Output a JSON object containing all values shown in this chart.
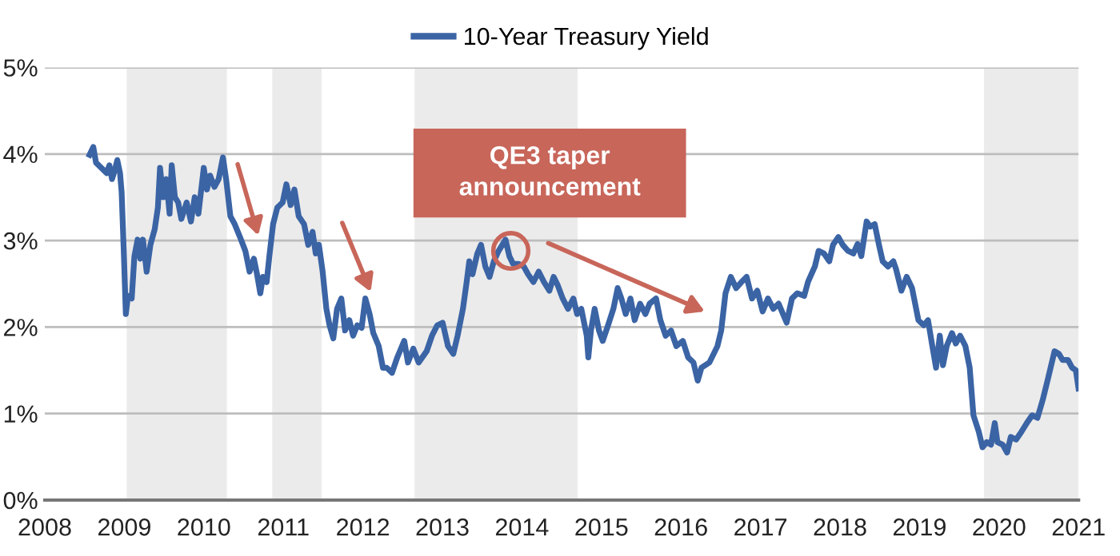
{
  "chart_data": {
    "type": "line",
    "legend": "top",
    "grid": "y",
    "line_style": "solid",
    "xlim": [
      2008,
      2021
    ],
    "xticks": [
      2008,
      2009,
      2010,
      2011,
      2012,
      2013,
      2014,
      2015,
      2016,
      2017,
      2018,
      2019,
      2020,
      2021
    ],
    "ylim": [
      0,
      5
    ],
    "yticks": [
      {
        "value": 0,
        "label": "0%"
      },
      {
        "value": 1,
        "label": "1%"
      },
      {
        "value": 2,
        "label": "2%"
      },
      {
        "value": 3,
        "label": "3%"
      },
      {
        "value": 4,
        "label": "4%"
      },
      {
        "value": 5,
        "label": "5%"
      }
    ],
    "bands": [
      {
        "axis": "x",
        "from": 2009.03,
        "to": 2010.29,
        "color": "#ebebeb"
      },
      {
        "axis": "x",
        "from": 2010.86,
        "to": 2011.48,
        "color": "#ebebeb"
      },
      {
        "axis": "x",
        "from": 2012.65,
        "to": 2014.7,
        "color": "#ebebeb"
      },
      {
        "axis": "x",
        "from": 2019.81,
        "to": 2021.0,
        "color": "#ebebeb"
      }
    ],
    "annotations": [
      {
        "text": "QE3 taper announcement",
        "x": 2013.86,
        "y": 2.88
      }
    ],
    "series": [
      {
        "name": "10-Year Treasury Yield",
        "color": "#3b64a5",
        "x": [
          2008.563,
          2008.61,
          2008.644,
          2008.711,
          2008.778,
          2008.812,
          2008.845,
          2008.879,
          2008.912,
          2008.946,
          2008.966,
          2008.993,
          2009.019,
          2009.046,
          2009.093,
          2009.127,
          2009.167,
          2009.201,
          2009.234,
          2009.281,
          2009.328,
          2009.382,
          2009.422,
          2009.449,
          2009.489,
          2009.529,
          2009.569,
          2009.596,
          2009.636,
          2009.677,
          2009.717,
          2009.784,
          2009.838,
          2009.885,
          2009.932,
          2009.999,
          2010.039,
          2010.079,
          2010.133,
          2010.186,
          2010.24,
          2010.28,
          2010.334,
          2010.388,
          2010.455,
          2010.522,
          2010.575,
          2010.629,
          2010.669,
          2010.71,
          2010.743,
          2010.79,
          2010.824,
          2010.871,
          2010.924,
          2010.991,
          2011.038,
          2011.092,
          2011.139,
          2011.193,
          2011.26,
          2011.313,
          2011.367,
          2011.407,
          2011.447,
          2011.494,
          2011.541,
          2011.581,
          2011.628,
          2011.675,
          2011.729,
          2011.776,
          2011.83,
          2011.877,
          2011.93,
          2011.984,
          2012.031,
          2012.085,
          2012.131,
          2012.199,
          2012.252,
          2012.299,
          2012.366,
          2012.433,
          2012.52,
          2012.567,
          2012.634,
          2012.701,
          2012.802,
          2012.869,
          2012.936,
          2013.003,
          2013.07,
          2013.137,
          2013.191,
          2013.258,
          2013.305,
          2013.338,
          2013.378,
          2013.439,
          2013.486,
          2013.54,
          2013.593,
          2013.647,
          2013.707,
          2013.794,
          2013.842,
          2013.889,
          2013.956,
          2014.023,
          2014.077,
          2014.144,
          2014.211,
          2014.278,
          2014.345,
          2014.399,
          2014.452,
          2014.513,
          2014.58,
          2014.647,
          2014.694,
          2014.747,
          2014.815,
          2014.835,
          2014.868,
          2014.915,
          2014.969,
          2015.016,
          2015.083,
          2015.15,
          2015.204,
          2015.251,
          2015.305,
          2015.365,
          2015.418,
          2015.486,
          2015.553,
          2015.606,
          2015.687,
          2015.741,
          2015.808,
          2015.875,
          2015.942,
          2016.023,
          2016.09,
          2016.157,
          2016.211,
          2016.258,
          2016.358,
          2016.459,
          2016.506,
          2016.56,
          2016.627,
          2016.694,
          2016.761,
          2016.826,
          2016.893,
          2016.96,
          2017.027,
          2017.094,
          2017.161,
          2017.228,
          2017.329,
          2017.396,
          2017.463,
          2017.55,
          2017.597,
          2017.684,
          2017.731,
          2017.798,
          2017.865,
          2017.912,
          2017.979,
          2018.034,
          2018.101,
          2018.168,
          2018.221,
          2018.268,
          2018.335,
          2018.382,
          2018.436,
          2018.49,
          2018.537,
          2018.604,
          2018.671,
          2018.705,
          2018.772,
          2018.839,
          2018.906,
          2018.986,
          2019.053,
          2019.107,
          2019.161,
          2019.208,
          2019.255,
          2019.295,
          2019.342,
          2019.409,
          2019.456,
          2019.51,
          2019.577,
          2019.631,
          2019.678,
          2019.745,
          2019.792,
          2019.845,
          2019.899,
          2019.946,
          2019.98,
          2020.047,
          2020.101,
          2020.148,
          2020.215,
          2020.282,
          2020.349,
          2020.416,
          2020.483,
          2020.55,
          2020.617,
          2020.698,
          2020.752,
          2020.799,
          2020.866,
          2020.919,
          2020.966,
          2021.0
        ],
        "values": [
          3.99,
          4.08,
          3.9,
          3.84,
          3.78,
          3.87,
          3.71,
          3.81,
          3.93,
          3.78,
          3.56,
          2.88,
          2.15,
          2.36,
          2.33,
          2.82,
          3.01,
          2.79,
          3.01,
          2.64,
          2.95,
          3.13,
          3.38,
          3.84,
          3.5,
          3.71,
          3.31,
          3.87,
          3.5,
          3.44,
          3.25,
          3.44,
          3.22,
          3.5,
          3.31,
          3.84,
          3.59,
          3.75,
          3.62,
          3.71,
          3.96,
          3.71,
          3.28,
          3.19,
          3.04,
          2.88,
          2.64,
          2.79,
          2.61,
          2.39,
          2.58,
          2.52,
          2.82,
          3.19,
          3.38,
          3.44,
          3.65,
          3.41,
          3.59,
          3.28,
          3.19,
          2.95,
          3.1,
          2.85,
          2.95,
          2.64,
          2.21,
          2.02,
          1.87,
          2.21,
          2.33,
          1.96,
          2.08,
          1.9,
          2.02,
          1.99,
          2.33,
          2.15,
          1.93,
          1.78,
          1.53,
          1.53,
          1.47,
          1.65,
          1.84,
          1.59,
          1.75,
          1.59,
          1.72,
          1.9,
          2.02,
          2.05,
          1.78,
          1.69,
          1.9,
          2.21,
          2.52,
          2.76,
          2.61,
          2.85,
          2.95,
          2.7,
          2.58,
          2.76,
          2.88,
          3.01,
          2.82,
          2.73,
          2.73,
          2.7,
          2.61,
          2.52,
          2.64,
          2.52,
          2.42,
          2.58,
          2.48,
          2.33,
          2.21,
          2.33,
          2.15,
          2.21,
          1.9,
          1.65,
          1.96,
          2.21,
          1.96,
          1.84,
          2.02,
          2.21,
          2.45,
          2.33,
          2.15,
          2.33,
          2.08,
          2.27,
          2.15,
          2.27,
          2.33,
          2.08,
          1.9,
          1.96,
          1.78,
          1.84,
          1.65,
          1.59,
          1.38,
          1.53,
          1.59,
          1.78,
          1.96,
          2.39,
          2.58,
          2.45,
          2.52,
          2.58,
          2.33,
          2.42,
          2.18,
          2.33,
          2.21,
          2.27,
          2.05,
          2.33,
          2.39,
          2.36,
          2.52,
          2.7,
          2.88,
          2.85,
          2.76,
          2.95,
          3.04,
          2.95,
          2.88,
          2.85,
          2.96,
          2.82,
          3.22,
          3.16,
          3.19,
          2.95,
          2.76,
          2.7,
          2.76,
          2.67,
          2.42,
          2.58,
          2.45,
          2.08,
          2.02,
          2.08,
          1.78,
          1.53,
          1.9,
          1.56,
          1.78,
          1.93,
          1.81,
          1.9,
          1.78,
          1.53,
          0.98,
          0.79,
          0.61,
          0.67,
          0.64,
          0.89,
          0.67,
          0.64,
          0.55,
          0.73,
          0.7,
          0.79,
          0.89,
          0.98,
          0.95,
          1.16,
          1.41,
          1.72,
          1.69,
          1.62,
          1.62,
          1.53,
          1.5,
          1.29
        ]
      }
    ]
  }
}
